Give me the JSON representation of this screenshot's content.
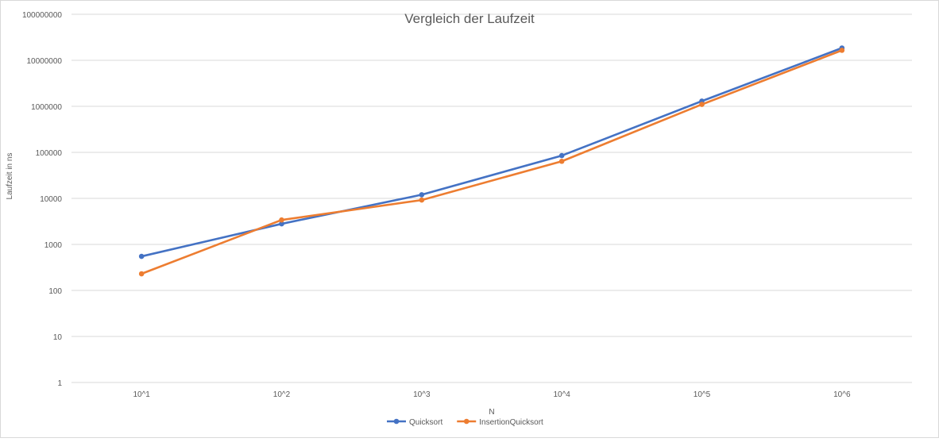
{
  "chart_data": {
    "type": "line",
    "title": "Vergleich der Laufzeit",
    "xlabel": "N",
    "ylabel": "Laufzeit in ns",
    "yscale": "log",
    "ylim": [
      1,
      100000000
    ],
    "yticks": [
      "1",
      "10",
      "100",
      "1000",
      "10000",
      "100000",
      "1000000",
      "10000000",
      "100000000"
    ],
    "categories": [
      "10^1",
      "10^2",
      "10^3",
      "10^4",
      "10^5",
      "10^6"
    ],
    "grid": true,
    "legend_position": "bottom",
    "series": [
      {
        "name": "Quicksort",
        "color": "#4472C4",
        "values": [
          550,
          2800,
          12000,
          85000,
          1300000,
          18500000
        ]
      },
      {
        "name": "InsertionQuicksort",
        "color": "#ED7D31",
        "values": [
          230,
          3400,
          9200,
          64000,
          1100000,
          16500000
        ]
      }
    ]
  }
}
